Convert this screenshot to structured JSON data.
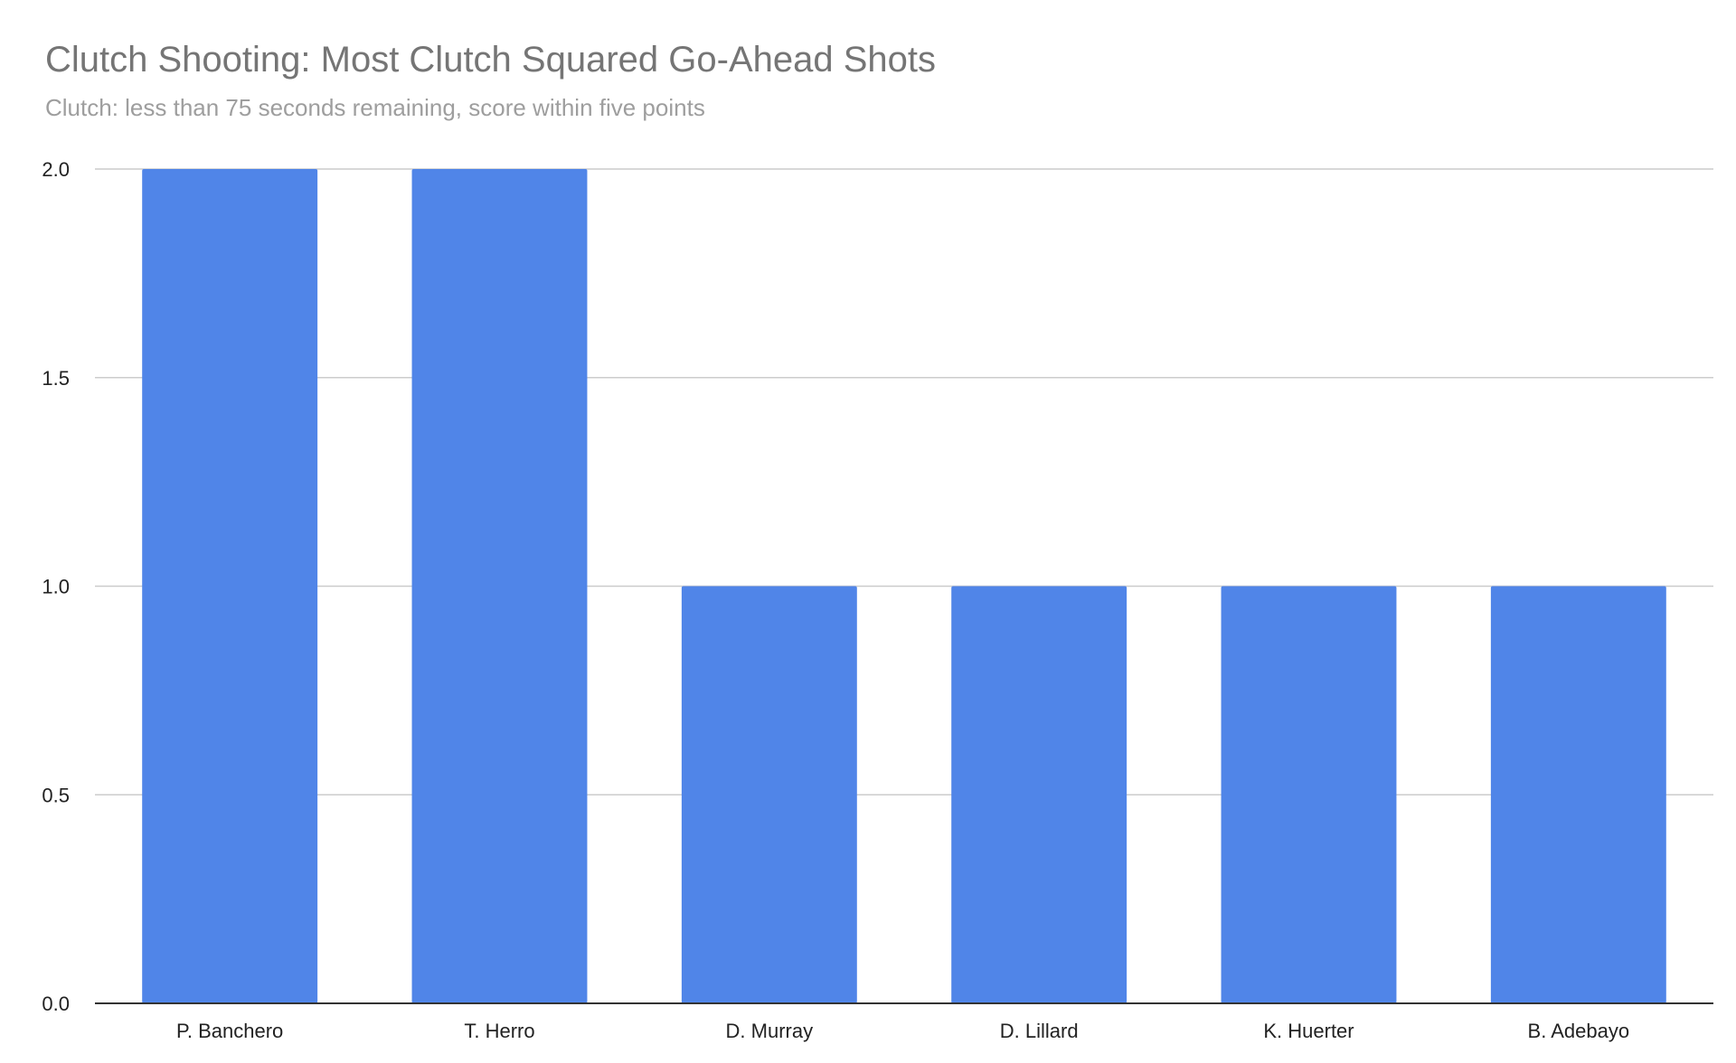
{
  "chart_data": {
    "type": "bar",
    "title": "Clutch Shooting: Most Clutch Squared Go-Ahead Shots",
    "subtitle": "Clutch: less than 75 seconds remaining, score within five points",
    "xlabel": "",
    "ylabel": "",
    "categories": [
      "P. Banchero",
      "T. Herro",
      "D. Murray",
      "D. Lillard",
      "K. Huerter",
      "B. Adebayo"
    ],
    "values": [
      2,
      2,
      1,
      1,
      1,
      1
    ],
    "ylim": [
      0,
      2
    ],
    "yticks": [
      0,
      0.5,
      1,
      1.5,
      2
    ],
    "ytick_labels": [
      "0.0",
      "0.5",
      "1.0",
      "1.5",
      "2.0"
    ],
    "grid": true,
    "legend": "none",
    "colors": {
      "bar": "#5085e8",
      "grid": "#cccccc",
      "axis": "#333333"
    }
  }
}
